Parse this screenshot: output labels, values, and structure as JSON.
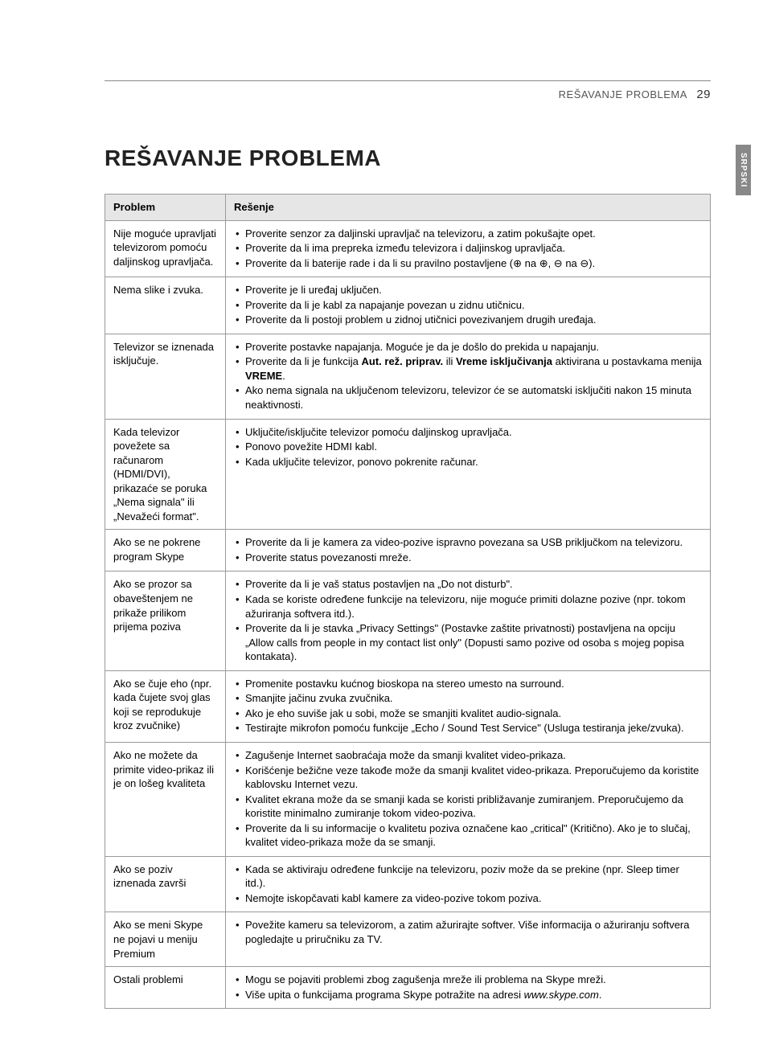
{
  "header": {
    "section": "REŠAVANJE PROBLEMA",
    "page_number": "29"
  },
  "side_tab": "SRPSKI",
  "title": "REŠAVANJE PROBLEMA",
  "table": {
    "head": {
      "problem": "Problem",
      "solution": "Rešenje"
    },
    "rows": [
      {
        "problem": "Nije moguće upravljati televizorom pomoću daljinskog upravljača.",
        "solutions": [
          {
            "text": "Proverite senzor za daljinski upravljač na televizoru, a zatim pokušajte opet."
          },
          {
            "text": "Proverite da li ima prepreka između televizora i daljinskog upravljača."
          },
          {
            "text": "Proverite da li baterije rade i da li su pravilno postavljene (⊕ na ⊕, ⊖ na ⊖)."
          }
        ]
      },
      {
        "problem": "Nema slike i zvuka.",
        "solutions": [
          {
            "text": "Proverite je li uređaj uključen."
          },
          {
            "text": "Proverite da li je kabl za napajanje povezan u zidnu utičnicu."
          },
          {
            "text": "Proverite da li postoji problem u zidnoj utičnici povezivanjem drugih uređaja."
          }
        ]
      },
      {
        "problem": "Televizor se iznenada isključuje.",
        "solutions": [
          {
            "text": "Proverite postavke napajanja. Moguće je da je došlo do prekida u napajanju."
          },
          {
            "html": "Proverite da li je funkcija <span class=\"bold\">Aut. rež. priprav.</span> ili <span class=\"bold\">Vreme isključivanja</span> aktivirana u postavkama menija <span class=\"bold\">VREME</span>."
          },
          {
            "text": "Ako nema signala na uključenom televizoru, televizor će se automatski isključiti nakon 15 minuta neaktivnosti."
          }
        ]
      },
      {
        "problem": "Kada televizor povežete sa računarom (HDMI/DVI), prikazaće se poruka „Nema signala\" ili „Nevažeći format\".",
        "solutions": [
          {
            "text": "Uključite/isključite televizor pomoću daljinskog upravljača."
          },
          {
            "text": "Ponovo povežite HDMI kabl."
          },
          {
            "text": "Kada uključite televizor, ponovo pokrenite računar."
          }
        ]
      },
      {
        "problem": "Ako se ne pokrene program Skype",
        "solutions": [
          {
            "text": "Proverite da li je kamera za video-pozive ispravno povezana sa USB priključkom na televizoru."
          },
          {
            "text": "Proverite status povezanosti mreže."
          }
        ]
      },
      {
        "problem": "Ako se prozor sa obaveštenjem ne prikaže prilikom prijema poziva",
        "solutions": [
          {
            "text": "Proverite da li je vaš status postavljen na „Do not disturb\"."
          },
          {
            "text": "Kada se koriste određene funkcije na televizoru, nije moguće primiti dolazne pozive (npr. tokom ažuriranja softvera itd.)."
          },
          {
            "text": "Proverite da li je stavka „Privacy Settings\" (Postavke zaštite privatnosti) postavljena na opciju „Allow calls from people in my contact list only\" (Dopusti samo pozive od osoba s mojeg popisa kontakata)."
          }
        ]
      },
      {
        "problem": "Ako se čuje eho (npr. kada čujete svoj glas koji se reprodukuje kroz zvučnike)",
        "solutions": [
          {
            "text": "Promenite postavku kućnog bioskopa na stereo umesto na surround."
          },
          {
            "text": "Smanjite jačinu zvuka zvučnika."
          },
          {
            "text": "Ako je eho suviše jak u sobi, može se smanjiti kvalitet audio-signala."
          },
          {
            "text": "Testirajte mikrofon pomoću funkcije „Echo / Sound Test Service\" (Usluga testiranja jeke/zvuka)."
          }
        ]
      },
      {
        "problem": "Ako ne možete da primite video-prikaz ili je on lošeg kvaliteta",
        "solutions": [
          {
            "text": "Zagušenje Internet saobraćaja može da smanji kvalitet video-prikaza."
          },
          {
            "text": "Korišćenje bežične veze takođe može da smanji kvalitet video-prikaza. Preporučujemo da koristite kablovsku Internet vezu."
          },
          {
            "text": "Kvalitet ekrana može da se smanji kada se koristi približavanje zumiranjem. Preporučujemo da koristite minimalno zumiranje tokom video-poziva."
          },
          {
            "text": "Proverite da li su informacije o kvalitetu poziva označene kao „critical\" (Kritično). Ako je to slučaj, kvalitet video-prikaza može da se smanji."
          }
        ]
      },
      {
        "problem": "Ako se poziv iznenada završi",
        "solutions": [
          {
            "text": "Kada se aktiviraju određene funkcije na televizoru, poziv može da se prekine (npr. Sleep timer itd.)."
          },
          {
            "text": "Nemojte iskopčavati kabl kamere za video-pozive tokom poziva."
          }
        ]
      },
      {
        "problem": "Ako se meni Skype ne pojavi u meniju Premium",
        "solutions": [
          {
            "text": "Povežite kameru sa televizorom, a zatim ažurirajte softver. Više informacija o ažuriranju softvera pogledajte u priručniku za TV."
          }
        ]
      },
      {
        "problem": "Ostali problemi",
        "solutions": [
          {
            "text": "Mogu se pojaviti problemi zbog zagušenja mreže ili problema na Skype mreži."
          },
          {
            "html": "Više upita o funkcijama programa Skype potražite na adresi <span class=\"italic\">www.skype.com</span>."
          }
        ]
      }
    ]
  }
}
